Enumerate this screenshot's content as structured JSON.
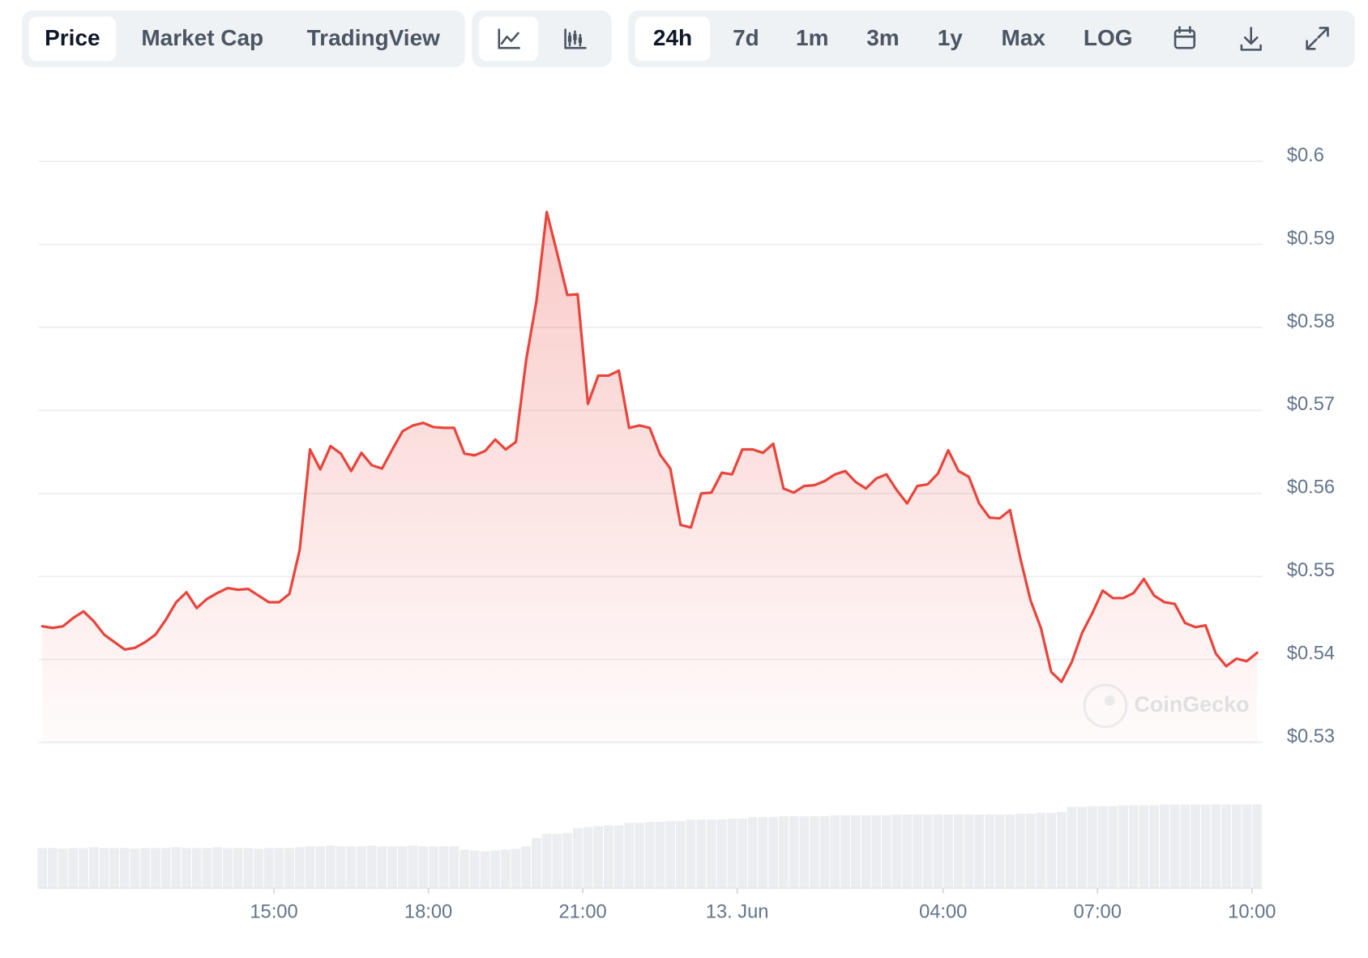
{
  "toolbar": {
    "data_tabs": [
      "Price",
      "Market Cap",
      "TradingView"
    ],
    "ranges": [
      "24h",
      "7d",
      "1m",
      "3m",
      "1y",
      "Max",
      "LOG"
    ]
  },
  "watermark": "CoinGecko",
  "chart_data": {
    "type": "line",
    "x": [
      10.5,
      10.7,
      10.9,
      11.1,
      11.3,
      11.5,
      11.7,
      11.9,
      12.1,
      12.3,
      12.5,
      12.7,
      12.9,
      13.1,
      13.3,
      13.5,
      13.7,
      13.9,
      14.1,
      14.3,
      14.5,
      14.7,
      14.9,
      15.1,
      15.3,
      15.5,
      15.7,
      15.9,
      16.1,
      16.3,
      16.5,
      16.7,
      16.9,
      17.1,
      17.3,
      17.5,
      17.7,
      17.9,
      18.1,
      18.3,
      18.5,
      18.7,
      18.9,
      19.1,
      19.3,
      19.5,
      19.7,
      19.9,
      20.1,
      20.3,
      20.5,
      20.7,
      20.9,
      21.1,
      21.3,
      21.5,
      21.7,
      21.9,
      22.1,
      22.3,
      22.5,
      22.7,
      22.9,
      23.1,
      23.3,
      23.5,
      23.7,
      23.9,
      24.1,
      24.3,
      24.5,
      24.7,
      24.9,
      25.1,
      25.3,
      25.5,
      25.7,
      25.9,
      26.1,
      26.3,
      26.5,
      26.7,
      26.9,
      27.1,
      27.3,
      27.5,
      27.7,
      27.9,
      28.1,
      28.3,
      28.5,
      28.7,
      28.9,
      29.1,
      29.3,
      29.5,
      29.7,
      29.9,
      30.1,
      30.3,
      30.5,
      30.7,
      30.9,
      31.1,
      31.3,
      31.5,
      31.7,
      31.9,
      32.1,
      32.3,
      32.5,
      32.7,
      32.9,
      33.1,
      33.3,
      33.5,
      33.7,
      33.9,
      34.1
    ],
    "values": [
      0.544,
      0.5438,
      0.544,
      0.545,
      0.5458,
      0.5446,
      0.543,
      0.5421,
      0.5412,
      0.5414,
      0.5421,
      0.543,
      0.5448,
      0.5469,
      0.5481,
      0.5462,
      0.5473,
      0.548,
      0.5486,
      0.5484,
      0.5485,
      0.5477,
      0.5469,
      0.5469,
      0.5479,
      0.5532,
      0.5653,
      0.5629,
      0.5657,
      0.5648,
      0.5627,
      0.5649,
      0.5634,
      0.563,
      0.5653,
      0.5675,
      0.5682,
      0.5685,
      0.568,
      0.5679,
      0.5679,
      0.5648,
      0.5646,
      0.5651,
      0.5665,
      0.5653,
      0.5662,
      0.5761,
      0.5832,
      0.5939,
      0.589,
      0.5839,
      0.584,
      0.5708,
      0.5742,
      0.5742,
      0.5748,
      0.5679,
      0.5682,
      0.5679,
      0.5647,
      0.563,
      0.5562,
      0.5559,
      0.56,
      0.5601,
      0.5625,
      0.5623,
      0.5653,
      0.5653,
      0.5649,
      0.566,
      0.5606,
      0.5601,
      0.5609,
      0.561,
      0.5615,
      0.5623,
      0.5627,
      0.5614,
      0.5606,
      0.5618,
      0.5623,
      0.5604,
      0.5588,
      0.5609,
      0.5611,
      0.5624,
      0.5652,
      0.5627,
      0.562,
      0.5588,
      0.5571,
      0.557,
      0.558,
      0.5522,
      0.5471,
      0.5438,
      0.5385,
      0.5373,
      0.5397,
      0.5432,
      0.5456,
      0.5483,
      0.5474,
      0.5474,
      0.548,
      0.5497,
      0.5477,
      0.5469,
      0.5467,
      0.5444,
      0.5439,
      0.5441,
      0.5407,
      0.5392,
      0.5401,
      0.5398,
      0.5408
    ],
    "volume": [
      48,
      48,
      47,
      48,
      48,
      49,
      48,
      48,
      48,
      47,
      48,
      48,
      48,
      49,
      48,
      48,
      48,
      49,
      48,
      48,
      48,
      47,
      48,
      48,
      48,
      49,
      50,
      50,
      51,
      50,
      50,
      50,
      51,
      50,
      50,
      50,
      51,
      50,
      50,
      50,
      50,
      46,
      45,
      44,
      45,
      46,
      47,
      50,
      60,
      65,
      65,
      66,
      72,
      73,
      74,
      75,
      75,
      78,
      78,
      79,
      79,
      80,
      80,
      82,
      82,
      82,
      82,
      83,
      83,
      85,
      85,
      85,
      86,
      86,
      86,
      86,
      86,
      87,
      87,
      87,
      87,
      87,
      87,
      88,
      88,
      88,
      88,
      88,
      88,
      88,
      88,
      88,
      88,
      88,
      88,
      89,
      89,
      90,
      90,
      91,
      97,
      97,
      98,
      98,
      98,
      99,
      99,
      99,
      99,
      100,
      100,
      100,
      100,
      100,
      100,
      100,
      100,
      100,
      100
    ],
    "color": "#e8453c",
    "xlim": [
      10.45,
      34.2
    ],
    "xticks": [
      {
        "value": 15,
        "label": "15:00"
      },
      {
        "value": 18,
        "label": "18:00"
      },
      {
        "value": 21,
        "label": "21:00"
      },
      {
        "value": 24,
        "label": "13. Jun"
      },
      {
        "value": 28,
        "label": "04:00"
      },
      {
        "value": 31,
        "label": "07:00"
      },
      {
        "value": 34,
        "label": "10:00"
      }
    ],
    "ylim": [
      0.53,
      0.6
    ],
    "yticks": [
      {
        "value": 0.6,
        "label": "$0.6"
      },
      {
        "value": 0.59,
        "label": "$0.59"
      },
      {
        "value": 0.58,
        "label": "$0.58"
      },
      {
        "value": 0.57,
        "label": "$0.57"
      },
      {
        "value": 0.56,
        "label": "$0.56"
      },
      {
        "value": 0.55,
        "label": "$0.55"
      },
      {
        "value": 0.54,
        "label": "$0.54"
      },
      {
        "value": 0.53,
        "label": "$0.53"
      }
    ],
    "grid": true
  }
}
